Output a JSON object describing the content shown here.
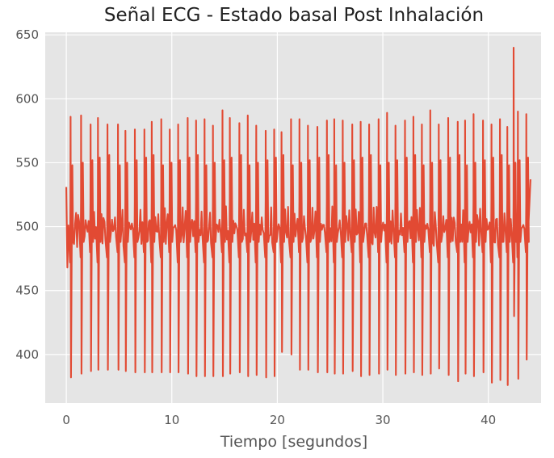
{
  "chart_data": {
    "type": "line",
    "title": "Señal ECG - Estado basal Post Inhalación",
    "xlabel": "Tiempo [segundos]",
    "ylabel": "",
    "xlim": [
      -2,
      45
    ],
    "ylim": [
      362,
      652
    ],
    "xticks": [
      0,
      10,
      20,
      30,
      40
    ],
    "yticks": [
      400,
      450,
      500,
      550,
      600,
      650
    ],
    "grid": true,
    "legend": "none",
    "series": [
      {
        "color": "#e24a33",
        "beats": {
          "t": [
            0.4,
            1.4,
            2.3,
            3.0,
            3.9,
            4.9,
            5.6,
            6.5,
            7.4,
            8.1,
            9.0,
            9.8,
            10.6,
            11.5,
            12.3,
            13.1,
            13.9,
            14.8,
            15.5,
            16.4,
            17.2,
            18.0,
            18.9,
            19.7,
            20.4,
            21.3,
            22.1,
            22.9,
            23.8,
            24.7,
            25.4,
            26.2,
            27.1,
            27.9,
            28.7,
            29.6,
            30.4,
            31.2,
            32.1,
            32.9,
            33.7,
            34.5,
            35.3,
            36.2,
            37.1,
            37.8,
            38.6,
            39.5,
            40.3,
            41.1,
            41.8,
            42.4,
            42.8,
            43.6
          ],
          "peak": [
            586,
            587,
            580,
            585,
            580,
            580,
            575,
            576,
            576,
            582,
            584,
            576,
            580,
            585,
            583,
            584,
            579,
            591,
            585,
            581,
            587,
            579,
            575,
            576,
            574,
            584,
            584,
            579,
            578,
            583,
            584,
            583,
            580,
            582,
            580,
            584,
            589,
            579,
            583,
            586,
            580,
            591,
            580,
            585,
            582,
            583,
            588,
            583,
            580,
            584,
            578,
            640,
            590,
            588
          ],
          "trough": [
            382,
            385,
            387,
            388,
            388,
            388,
            387,
            386,
            386,
            386,
            386,
            386,
            386,
            385,
            383,
            383,
            383,
            383,
            385,
            386,
            383,
            384,
            382,
            383,
            402,
            400,
            388,
            388,
            386,
            386,
            385,
            385,
            387,
            383,
            384,
            385,
            388,
            384,
            385,
            386,
            384,
            385,
            389,
            384,
            379,
            385,
            383,
            386,
            378,
            380,
            376,
            430,
            381,
            396
          ]
        },
        "start": {
          "x": 0.0,
          "y": 531
        },
        "end": {
          "x": 44.0,
          "y": 537
        }
      }
    ]
  }
}
